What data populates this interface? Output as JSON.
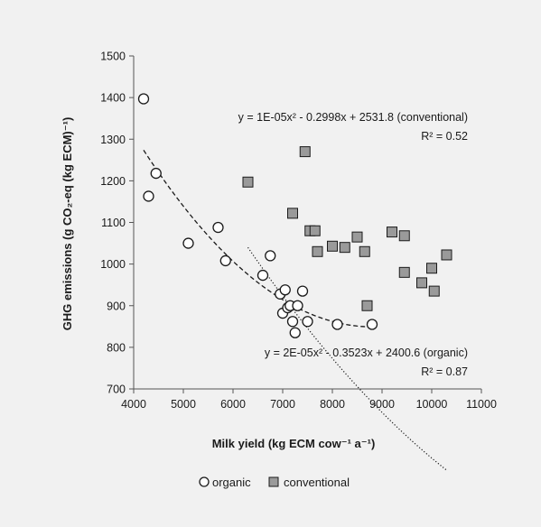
{
  "chart_data": {
    "type": "scatter",
    "xlabel": "Milk yield (kg ECM cow⁻¹ a⁻¹)",
    "ylabel": "GHG emissions (g CO₂-eq (kg ECM)⁻¹)",
    "xlim": [
      4000,
      11000
    ],
    "ylim": [
      700,
      1500
    ],
    "xticks": [
      4000,
      5000,
      6000,
      7000,
      8000,
      9000,
      10000,
      11000
    ],
    "yticks": [
      700,
      800,
      900,
      1000,
      1100,
      1200,
      1300,
      1400,
      1500
    ],
    "grid": false,
    "legend_position": "bottom",
    "series": [
      {
        "name": "organic",
        "marker": "circle",
        "color": "#ffffff",
        "x": [
          4200,
          4300,
          4450,
          5100,
          5700,
          5850,
          6600,
          6750,
          6950,
          7000,
          7050,
          7100,
          7150,
          7200,
          7250,
          7300,
          7400,
          7500,
          8100,
          8800
        ],
        "y": [
          1397,
          1163,
          1218,
          1050,
          1088,
          1008,
          973,
          1020,
          928,
          882,
          938,
          895,
          900,
          862,
          835,
          900,
          935,
          862,
          855,
          855
        ]
      },
      {
        "name": "conventional",
        "marker": "square",
        "color": "#9a9a9a",
        "x": [
          6300,
          7200,
          7450,
          7550,
          7650,
          7700,
          8000,
          8250,
          8500,
          8650,
          8700,
          9200,
          9450,
          9450,
          9800,
          10000,
          10050,
          10300
        ],
        "y": [
          1197,
          1122,
          1270,
          1080,
          1080,
          1030,
          1043,
          1040,
          1065,
          1030,
          900,
          1077,
          1068,
          980,
          955,
          990,
          935,
          1022
        ]
      }
    ],
    "trendlines": [
      {
        "series": "conventional",
        "coefficients": [
          1e-05,
          -0.2998,
          2531.8
        ],
        "x_range": [
          6300,
          10300
        ],
        "style": "dotted",
        "equation": "y = 1E-05x² - 0.2998x + 2531.8 (conventional)",
        "r2": "R² = 0.52"
      },
      {
        "series": "organic",
        "coefficients": [
          2e-05,
          -0.3523,
          2400.6
        ],
        "x_range": [
          4200,
          8800
        ],
        "style": "dashed",
        "equation": "y = 2E-05x² - 0.3523x + 2400.6 (organic)",
        "r2": "R² = 0.87"
      }
    ]
  }
}
